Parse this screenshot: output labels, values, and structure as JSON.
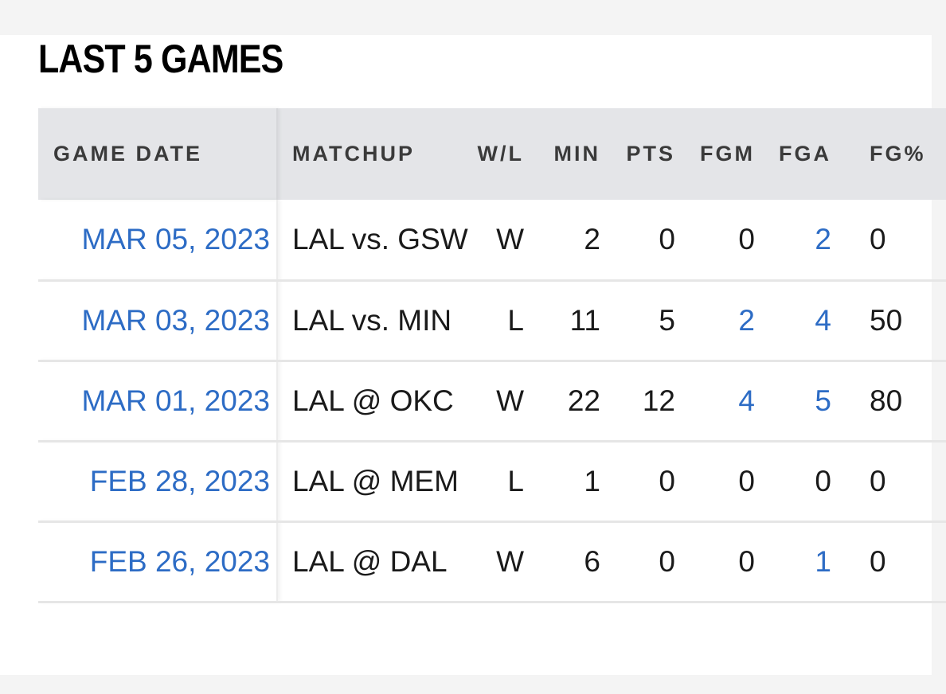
{
  "section": {
    "title": "LAST 5 GAMES"
  },
  "table": {
    "headers": {
      "game_date": "GAME DATE",
      "matchup": "MATCHUP",
      "wl": "W/L",
      "min": "MIN",
      "pts": "PTS",
      "fgm": "FGM",
      "fga": "FGA",
      "fgp": "FG%"
    },
    "rows": [
      {
        "game_date": "MAR 05, 2023",
        "matchup": "LAL vs. GSW",
        "wl": "W",
        "min": "2",
        "pts": "0",
        "fgm": "0",
        "fga": "2",
        "fgp": "0"
      },
      {
        "game_date": "MAR 03, 2023",
        "matchup": "LAL vs. MIN",
        "wl": "L",
        "min": "11",
        "pts": "5",
        "fgm": "2",
        "fga": "4",
        "fgp": "50"
      },
      {
        "game_date": "MAR 01, 2023",
        "matchup": "LAL @ OKC",
        "wl": "W",
        "min": "22",
        "pts": "12",
        "fgm": "4",
        "fga": "5",
        "fgp": "80"
      },
      {
        "game_date": "FEB 28, 2023",
        "matchup": "LAL @ MEM",
        "wl": "L",
        "min": "1",
        "pts": "0",
        "fgm": "0",
        "fga": "0",
        "fgp": "0"
      },
      {
        "game_date": "FEB 26, 2023",
        "matchup": "LAL @ DAL",
        "wl": "W",
        "min": "6",
        "pts": "0",
        "fgm": "0",
        "fga": "1",
        "fgp": "0"
      }
    ]
  },
  "colors": {
    "link": "#2d6cc5",
    "header_bg": "#e4e5e8",
    "page_bg": "#f4f4f4"
  }
}
